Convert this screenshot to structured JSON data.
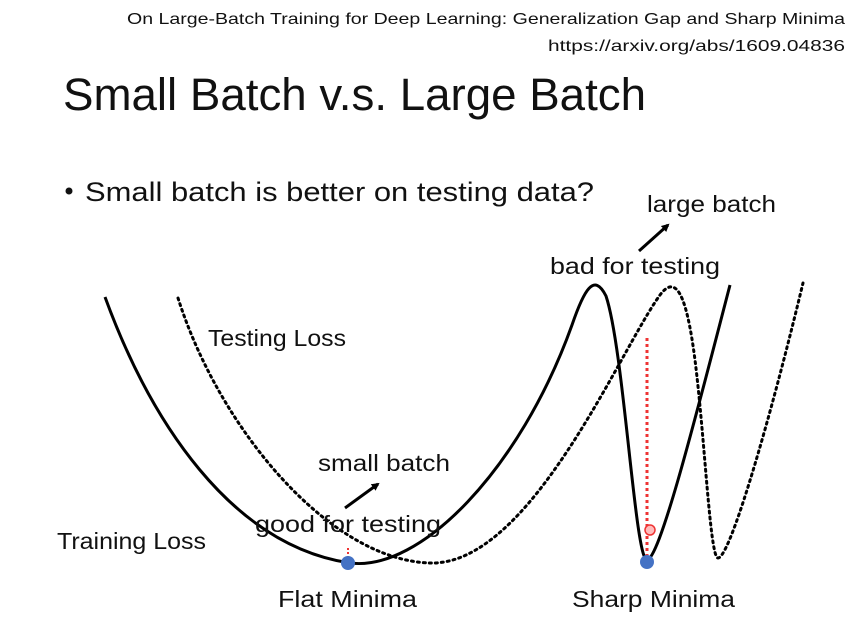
{
  "reference": {
    "paper": "On Large-Batch Training for Deep Learning: Generalization Gap and Sharp Minima",
    "url": "https://arxiv.org/abs/1609.04836"
  },
  "title": "Small Batch v.s. Large Batch",
  "bullet": "Small batch is better on testing data?",
  "labels": {
    "large_batch": "large batch",
    "bad_for_testing": "bad for testing",
    "testing_loss": "Testing Loss",
    "small_batch": "small batch",
    "good_for_testing": "good for testing",
    "training_loss": "Training Loss",
    "flat_minima": "Flat Minima",
    "sharp_minima": "Sharp Minima"
  }
}
